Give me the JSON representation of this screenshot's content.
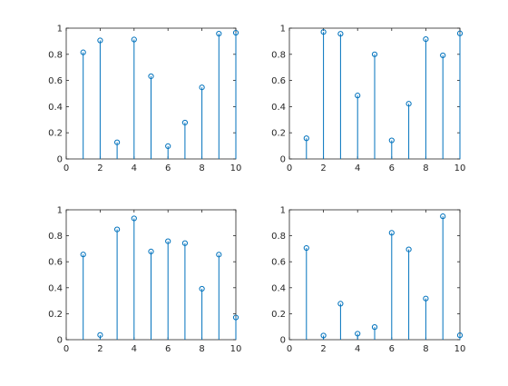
{
  "chart_data": [
    {
      "type": "stem",
      "x": [
        1,
        2,
        3,
        4,
        5,
        6,
        7,
        8,
        9,
        10
      ],
      "values": [
        0.815,
        0.906,
        0.127,
        0.913,
        0.632,
        0.098,
        0.278,
        0.547,
        0.958,
        0.965
      ],
      "xlim": [
        0,
        10
      ],
      "ylim": [
        0,
        1
      ],
      "xticks": [
        "0",
        "2",
        "4",
        "6",
        "8",
        "10"
      ],
      "yticks": [
        "0",
        "0.2",
        "0.4",
        "0.6",
        "0.8",
        "1"
      ],
      "marker": "circle-open",
      "color": "#0072bd",
      "grid": false,
      "title": "",
      "xlabel": "",
      "ylabel": ""
    },
    {
      "type": "stem",
      "x": [
        1,
        2,
        3,
        4,
        5,
        6,
        7,
        8,
        9,
        10
      ],
      "values": [
        0.158,
        0.971,
        0.957,
        0.485,
        0.8,
        0.142,
        0.422,
        0.916,
        0.792,
        0.96
      ],
      "xlim": [
        0,
        10
      ],
      "ylim": [
        0,
        1
      ],
      "xticks": [
        "0",
        "2",
        "4",
        "6",
        "8",
        "10"
      ],
      "yticks": [
        "0",
        "0.2",
        "0.4",
        "0.6",
        "0.8",
        "1"
      ],
      "marker": "circle-open",
      "color": "#0072bd",
      "grid": false,
      "title": "",
      "xlabel": "",
      "ylabel": ""
    },
    {
      "type": "stem",
      "x": [
        1,
        2,
        3,
        4,
        5,
        6,
        7,
        8,
        9,
        10
      ],
      "values": [
        0.656,
        0.036,
        0.849,
        0.934,
        0.679,
        0.758,
        0.743,
        0.392,
        0.655,
        0.171
      ],
      "xlim": [
        0,
        10
      ],
      "ylim": [
        0,
        1
      ],
      "xticks": [
        "0",
        "2",
        "4",
        "6",
        "8",
        "10"
      ],
      "yticks": [
        "0",
        "0.2",
        "0.4",
        "0.6",
        "0.8",
        "1"
      ],
      "marker": "circle-open",
      "color": "#0072bd",
      "grid": false,
      "title": "",
      "xlabel": "",
      "ylabel": ""
    },
    {
      "type": "stem",
      "x": [
        1,
        2,
        3,
        4,
        5,
        6,
        7,
        8,
        9,
        10
      ],
      "values": [
        0.706,
        0.032,
        0.277,
        0.046,
        0.097,
        0.823,
        0.695,
        0.317,
        0.95,
        0.034
      ],
      "xlim": [
        0,
        10
      ],
      "ylim": [
        0,
        1
      ],
      "xticks": [
        "0",
        "2",
        "4",
        "6",
        "8",
        "10"
      ],
      "yticks": [
        "0",
        "0.2",
        "0.4",
        "0.6",
        "0.8",
        "1"
      ],
      "marker": "circle-open",
      "color": "#0072bd",
      "grid": false,
      "title": "",
      "xlabel": "",
      "ylabel": ""
    }
  ]
}
